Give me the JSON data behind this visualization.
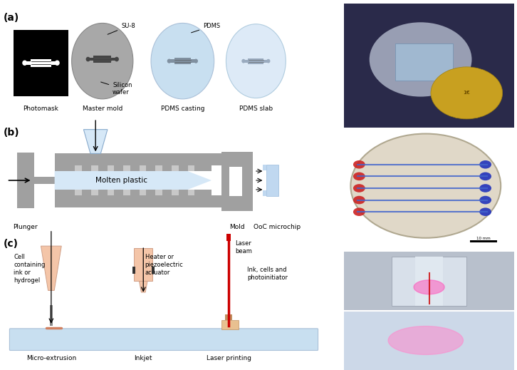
{
  "fig_bg": "#ffffff",
  "label_a": "(a)",
  "label_b": "(b)",
  "label_c": "(c)",
  "text_photomask": "Photomask",
  "text_master_mold": "Master mold",
  "text_pdms_casting": "PDMS casting",
  "text_pdms_slab": "PDMS slab",
  "text_su8": "SU-8",
  "text_silicon_wafer": "Silicon\nwafer",
  "text_pdms_label": "PDMS",
  "text_plunger": "Plunger",
  "text_mold": "Mold",
  "text_ooc": "OoC microchip",
  "text_molten": "Molten plastic",
  "text_micro_extrusion": "Micro-extrusion",
  "text_inkjet": "Inkjet",
  "text_laser": "Laser printing",
  "text_cell_ink": "Cell\ncontaining\nink or\nhydrogel",
  "text_heater": "Heater or\npiezoelectric\nactuator",
  "text_laser_beam": "Laser\nbeam",
  "text_ink_cells": "Ink, cells and\nphotoinitiator",
  "gray_color": "#a0a0a0",
  "dark_gray": "#808080",
  "light_blue": "#d6e8f7",
  "medium_gray": "#b0b0b0",
  "light_gray": "#c8c8c8",
  "black": "#000000",
  "white": "#ffffff",
  "salmon": "#f4c5a8",
  "red_laser": "#cc0000"
}
